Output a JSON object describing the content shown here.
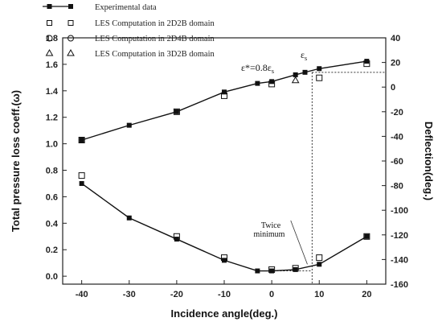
{
  "chart_data": {
    "type": "line",
    "x_label": "Incidence angle(deg.)",
    "y_label_left": "Total pressure loss coeff.(ω)",
    "y_label_right": "Deflection(deg.)",
    "x_ticks": [
      -40,
      -30,
      -20,
      -10,
      0,
      10,
      20
    ],
    "x_range": [
      -44,
      24
    ],
    "y_left_ticks": [
      "0.0",
      "0.2",
      "0.4",
      "0.6",
      "0.8",
      "1.0",
      "1.2",
      "1.4",
      "1.6",
      "1.8"
    ],
    "y_left_range": [
      -0.06,
      1.8
    ],
    "y_right_ticks": [
      "-160",
      "-140",
      "-120",
      "-100",
      "-80",
      "-60",
      "-40",
      "-20",
      "0",
      "20",
      "40"
    ],
    "y_right_range": [
      -160,
      40
    ],
    "grid": false,
    "legend_position": "top-left, above plot",
    "legend": [
      {
        "marker": "filled-square-line",
        "label": "Experimental data"
      },
      {
        "marker": "open-square",
        "label": "LES Computation in 2D2B domain"
      },
      {
        "marker": "open-circle",
        "label": "LES Computation in 2D4B domain"
      },
      {
        "marker": "open-triangle",
        "label": "LES Computation in 3D2B domain"
      }
    ],
    "series": [
      {
        "name": "Experimental data",
        "quantity": "loss",
        "marker": "filled-square-line",
        "x": [
          -40,
          -30,
          -20,
          -10,
          -3,
          0,
          5,
          10,
          20
        ],
        "y": [
          0.7,
          0.44,
          0.28,
          0.12,
          0.04,
          0.04,
          0.05,
          0.09,
          0.3
        ]
      },
      {
        "name": "LES Computation in 2D2B domain",
        "quantity": "loss",
        "marker": "open-square",
        "x": [
          -40,
          -20,
          -10,
          0,
          5,
          10,
          20
        ],
        "y": [
          0.76,
          0.3,
          0.14,
          0.05,
          0.06,
          0.14,
          0.3
        ]
      },
      {
        "name": "Experimental data",
        "quantity": "deflection",
        "marker": "filled-square-line",
        "x": [
          -40,
          -30,
          -20,
          -10,
          -3,
          0,
          5,
          7,
          10,
          20
        ],
        "y": [
          -43,
          -31,
          -20,
          -4,
          3,
          4.5,
          10,
          12,
          15,
          21
        ]
      },
      {
        "name": "LES Computation in 2D2B domain",
        "quantity": "deflection",
        "marker": "open-square",
        "x": [
          -40,
          -20,
          -10,
          0,
          10,
          20
        ],
        "y": [
          -43,
          -20,
          -7,
          2.5,
          7.5,
          19
        ]
      },
      {
        "name": "LES Computation in 3D2B domain",
        "quantity": "deflection",
        "marker": "open-triangle",
        "x": [
          5
        ],
        "y": [
          5.5
        ]
      }
    ],
    "annotations": {
      "eps_star": "ε*=0.8ε",
      "eps_star_sub": "s",
      "eps_s": "ε",
      "eps_s_sub": "s",
      "twice_minimum_1": "Twice",
      "twice_minimum_2": "minimum"
    }
  }
}
